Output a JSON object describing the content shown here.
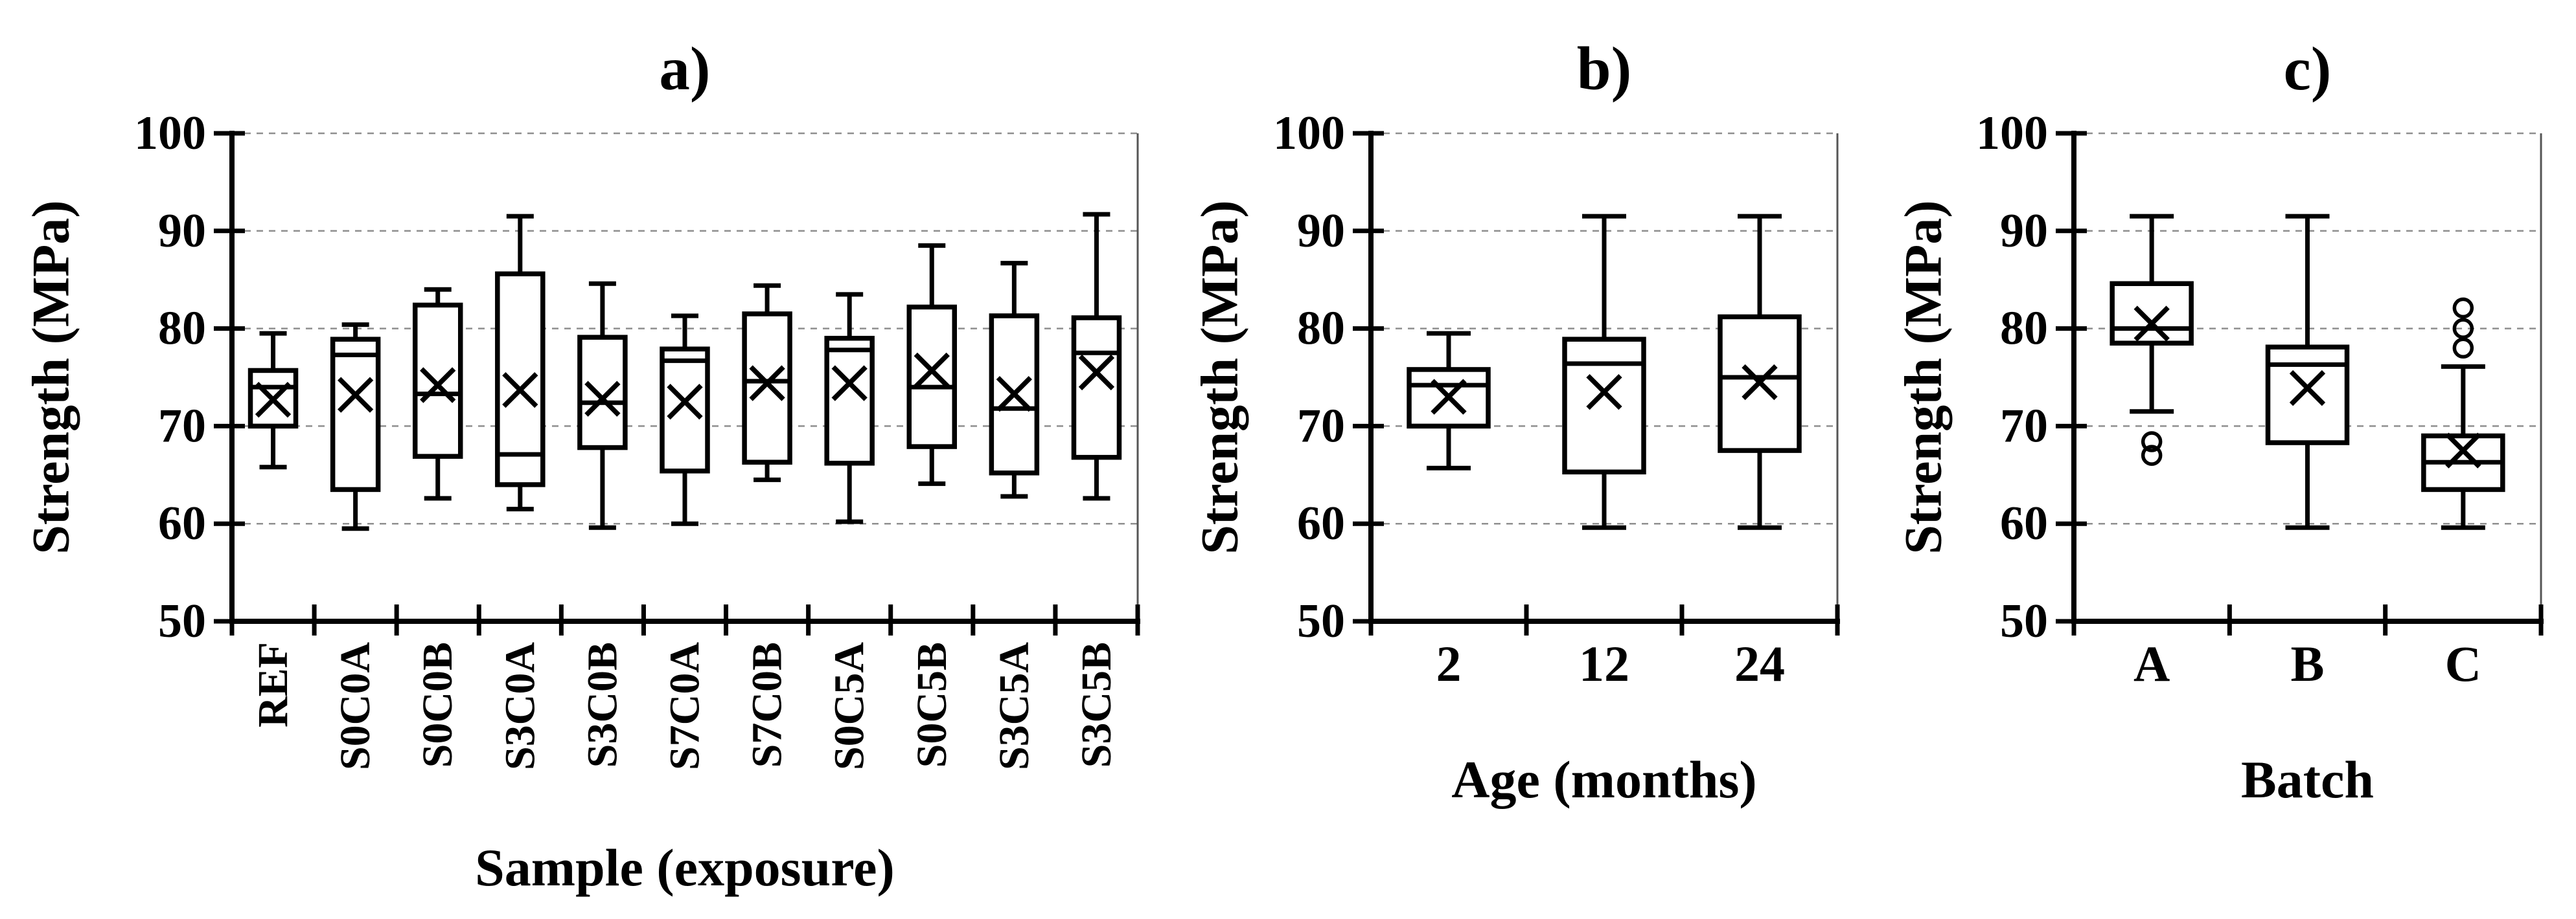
{
  "figure": {
    "background_color": "#ffffff",
    "ink_color": "#000000",
    "grid_color": "#8f8f8f"
  },
  "chart_data": [
    {
      "type": "box",
      "title": "a)",
      "xlabel": "Sample (exposure)",
      "ylabel": "Strength (MPa)",
      "ylim": [
        50,
        100
      ],
      "yticks": [
        50,
        60,
        70,
        80,
        90,
        100
      ],
      "grid": "horizontal-dashed",
      "legend": "none",
      "x_tick_rotation": -90,
      "categories": [
        "REF",
        "S0C0A",
        "S0C0B",
        "S3C0A",
        "S3C0B",
        "S7C0A",
        "S7C0B",
        "S0C5A",
        "S0C5B",
        "S3C5A",
        "S3C5B"
      ],
      "series": [
        {
          "name": "REF",
          "whisker_low": 65.8,
          "q1": 70.0,
          "median": 74.0,
          "q3": 75.7,
          "whisker_high": 79.5,
          "mean": 72.7,
          "outliers": []
        },
        {
          "name": "S0C0A",
          "whisker_low": 59.5,
          "q1": 63.5,
          "median": 77.3,
          "q3": 78.9,
          "whisker_high": 80.4,
          "mean": 73.2,
          "outliers": []
        },
        {
          "name": "S0C0B",
          "whisker_low": 62.6,
          "q1": 66.9,
          "median": 73.3,
          "q3": 82.4,
          "whisker_high": 84.0,
          "mean": 74.2,
          "outliers": []
        },
        {
          "name": "S3C0A",
          "whisker_low": 61.5,
          "q1": 64.0,
          "median": 67.1,
          "q3": 85.6,
          "whisker_high": 91.5,
          "mean": 73.7,
          "outliers": []
        },
        {
          "name": "S3C0B",
          "whisker_low": 59.6,
          "q1": 67.8,
          "median": 72.4,
          "q3": 79.1,
          "whisker_high": 84.6,
          "mean": 72.8,
          "outliers": []
        },
        {
          "name": "S7C0A",
          "whisker_low": 60.0,
          "q1": 65.4,
          "median": 76.7,
          "q3": 77.9,
          "whisker_high": 81.3,
          "mean": 72.5,
          "outliers": []
        },
        {
          "name": "S7C0B",
          "whisker_low": 64.5,
          "q1": 66.3,
          "median": 74.6,
          "q3": 81.5,
          "whisker_high": 84.4,
          "mean": 74.4,
          "outliers": []
        },
        {
          "name": "S0C5A",
          "whisker_low": 60.2,
          "q1": 66.2,
          "median": 77.8,
          "q3": 79.0,
          "whisker_high": 83.5,
          "mean": 74.4,
          "outliers": []
        },
        {
          "name": "S0C5B",
          "whisker_low": 64.1,
          "q1": 67.9,
          "median": 74.0,
          "q3": 82.2,
          "whisker_high": 88.5,
          "mean": 75.7,
          "outliers": []
        },
        {
          "name": "S3C5A",
          "whisker_low": 62.8,
          "q1": 65.2,
          "median": 71.8,
          "q3": 81.3,
          "whisker_high": 86.7,
          "mean": 73.3,
          "outliers": []
        },
        {
          "name": "S3C5B",
          "whisker_low": 62.6,
          "q1": 66.8,
          "median": 77.5,
          "q3": 81.1,
          "whisker_high": 91.7,
          "mean": 75.5,
          "outliers": []
        }
      ]
    },
    {
      "type": "box",
      "title": "b)",
      "xlabel": "Age (months)",
      "ylabel": "Strength (MPa)",
      "ylim": [
        50,
        100
      ],
      "yticks": [
        50,
        60,
        70,
        80,
        90,
        100
      ],
      "grid": "horizontal-dashed",
      "legend": "none",
      "x_tick_rotation": 0,
      "categories": [
        "2",
        "12",
        "24"
      ],
      "series": [
        {
          "name": "2",
          "whisker_low": 65.7,
          "q1": 70.0,
          "median": 74.2,
          "q3": 75.8,
          "whisker_high": 79.5,
          "mean": 73.0,
          "outliers": []
        },
        {
          "name": "12",
          "whisker_low": 59.6,
          "q1": 65.3,
          "median": 76.4,
          "q3": 78.9,
          "whisker_high": 91.5,
          "mean": 73.5,
          "outliers": []
        },
        {
          "name": "24",
          "whisker_low": 59.6,
          "q1": 67.5,
          "median": 75.0,
          "q3": 81.2,
          "whisker_high": 91.5,
          "mean": 74.5,
          "outliers": []
        }
      ]
    },
    {
      "type": "box",
      "title": "c)",
      "xlabel": "Batch",
      "ylabel": "Strength (MPa)",
      "ylim": [
        50,
        100
      ],
      "yticks": [
        50,
        60,
        70,
        80,
        90,
        100
      ],
      "grid": "horizontal-dashed",
      "legend": "none",
      "x_tick_rotation": 0,
      "categories": [
        "A",
        "B",
        "C"
      ],
      "series": [
        {
          "name": "A",
          "whisker_low": 71.5,
          "q1": 78.5,
          "median": 80.0,
          "q3": 84.6,
          "whisker_high": 91.5,
          "mean": 80.5,
          "outliers": [
            68.4,
            67.0
          ]
        },
        {
          "name": "B",
          "whisker_low": 59.6,
          "q1": 68.3,
          "median": 76.3,
          "q3": 78.1,
          "whisker_high": 91.5,
          "mean": 73.9,
          "outliers": []
        },
        {
          "name": "C",
          "whisker_low": 59.6,
          "q1": 63.5,
          "median": 66.3,
          "q3": 69.0,
          "whisker_high": 76.1,
          "mean": 67.5,
          "outliers": [
            82.1,
            80.0,
            78.0
          ]
        }
      ]
    }
  ]
}
